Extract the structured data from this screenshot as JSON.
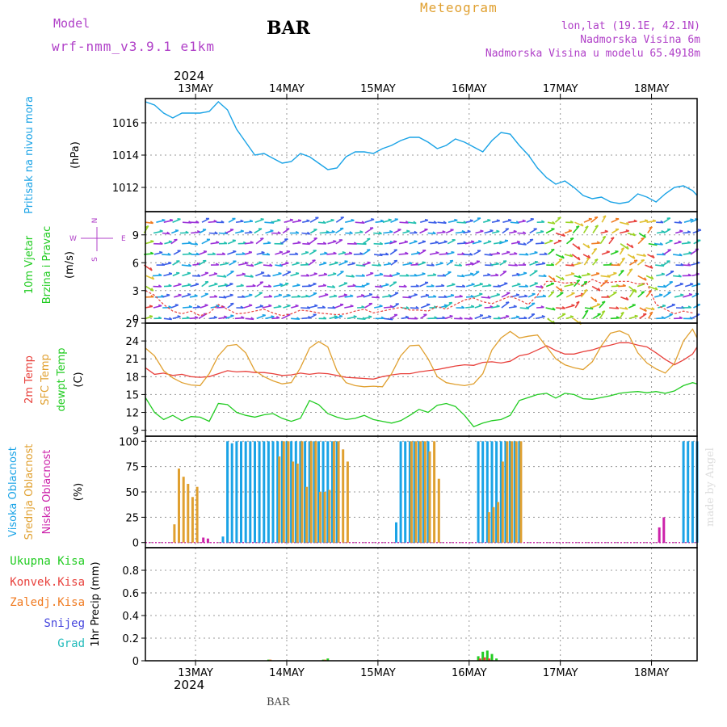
{
  "header": {
    "model_label": "Model",
    "model_name": "wrf-nmm_v3.9.1 e1km",
    "station": "BAR",
    "title": "Meteogram",
    "coords": "lon,lat (19.1E, 42.1N)",
    "altitude": "Nadmorska Visina 6m",
    "model_altitude": "Nadmorska Visina u modelu 65.4918m",
    "year": "2024",
    "footer_station": "BAR",
    "watermark": "made by Angel"
  },
  "colors": {
    "pressure": "#1aa3e6",
    "temp2m": "#e8413c",
    "sfc_temp": "#e0a030",
    "dewpoint": "#22cc22",
    "high_cloud": "#1aa3e6",
    "mid_cloud": "#e0a030",
    "low_cloud": "#cc22aa",
    "precip_total": "#22cc22",
    "precip_conv": "#e8413c",
    "precip_frz": "#f07a20",
    "snow": "#4444dd",
    "hail": "#22bbbb"
  },
  "chart_data": [
    {
      "type": "line",
      "panel": "pressure",
      "ylabel": [
        "Pritisak na nivou mora",
        "(hPa)"
      ],
      "xlim": [
        -0.55,
        5.5
      ],
      "ylim": [
        1010.5,
        1017.5
      ],
      "yticks": [
        1012,
        1014,
        1016
      ],
      "x_ticks": [
        "13MAY",
        "14MAY",
        "15MAY",
        "16MAY",
        "17MAY",
        "18MAY"
      ],
      "series": [
        {
          "x": [
            -0.55,
            -0.45,
            -0.35,
            -0.25,
            -0.15,
            -0.05,
            0.05,
            0.15,
            0.25,
            0.35,
            0.45,
            0.55,
            0.65,
            0.75,
            0.85,
            0.95,
            1.05,
            1.15,
            1.25,
            1.35,
            1.45,
            1.55,
            1.65,
            1.75,
            1.85,
            1.95,
            2.05,
            2.15,
            2.25,
            2.35,
            2.45,
            2.55,
            2.65,
            2.75,
            2.85,
            2.95,
            3.05,
            3.15,
            3.25,
            3.35,
            3.45,
            3.55,
            3.65,
            3.75,
            3.85,
            3.95,
            4.05,
            4.15,
            4.25,
            4.35,
            4.45,
            4.55,
            4.65,
            4.75,
            4.85,
            4.95,
            5.05,
            5.15,
            5.25,
            5.35,
            5.45,
            5.5
          ],
          "values": [
            1017.3,
            1017.1,
            1016.6,
            1016.3,
            1016.6,
            1016.6,
            1016.6,
            1016.7,
            1017.3,
            1016.8,
            1015.6,
            1014.8,
            1014.0,
            1014.1,
            1013.8,
            1013.5,
            1013.6,
            1014.1,
            1013.9,
            1013.5,
            1013.1,
            1013.2,
            1013.9,
            1014.2,
            1014.2,
            1014.1,
            1014.4,
            1014.6,
            1014.9,
            1015.1,
            1015.1,
            1014.8,
            1014.4,
            1014.6,
            1015.0,
            1014.8,
            1014.5,
            1014.2,
            1014.9,
            1015.4,
            1015.3,
            1014.6,
            1014.0,
            1013.2,
            1012.6,
            1012.2,
            1012.4,
            1012.0,
            1011.5,
            1011.3,
            1011.4,
            1011.1,
            1011.0,
            1011.1,
            1011.6,
            1011.4,
            1011.1,
            1011.6,
            1012.0,
            1012.1,
            1011.8,
            1011.5
          ]
        }
      ]
    },
    {
      "type": "barb",
      "panel": "wind",
      "ylabel": [
        "10m Vjetar",
        "Brzina i Pravac",
        "(m/s)"
      ],
      "compass": [
        "N",
        "W",
        "E",
        "S"
      ],
      "ylim": [
        -0.5,
        11.5
      ],
      "yticks": [
        0,
        3,
        6,
        9
      ],
      "series": [
        {
          "name": "wind speed",
          "x": [
            -0.55,
            -0.45,
            -0.35,
            -0.25,
            -0.15,
            -0.05,
            0.05,
            0.15,
            0.25,
            0.35,
            0.45,
            0.55,
            0.65,
            0.75,
            0.85,
            0.95,
            1.05,
            1.15,
            1.25,
            1.35,
            1.45,
            1.55,
            1.65,
            1.75,
            1.85,
            1.95,
            2.05,
            2.15,
            2.25,
            2.35,
            2.45,
            2.55,
            2.65,
            2.75,
            2.85,
            2.95,
            3.05,
            3.15,
            3.25,
            3.35,
            3.45,
            3.55,
            3.65,
            3.75,
            3.85,
            3.95,
            4.05,
            4.15,
            4.25,
            4.35,
            4.45,
            4.55,
            4.65,
            4.75,
            4.85,
            4.95,
            5.05,
            5.15,
            5.25,
            5.35,
            5.45
          ],
          "values": [
            3.0,
            2.5,
            1.5,
            0.8,
            0.5,
            0.8,
            0.3,
            0.6,
            1.5,
            1.0,
            0.5,
            0.6,
            0.8,
            1.0,
            0.6,
            0.3,
            0.5,
            0.9,
            0.8,
            0.6,
            0.5,
            0.4,
            0.5,
            0.8,
            1.0,
            0.6,
            0.8,
            1.0,
            1.2,
            0.9,
            0.9,
            0.8,
            1.3,
            1.0,
            1.5,
            2.0,
            2.2,
            1.8,
            1.6,
            2.0,
            2.4,
            2.0,
            1.5,
            2.5,
            4.0,
            4.0,
            3.8,
            3.9,
            3.5,
            4.2,
            3.8,
            3.9,
            4.0,
            4.0,
            3.7,
            3.8,
            1.5,
            1.0,
            0.5,
            0.8,
            0.6
          ]
        }
      ]
    },
    {
      "type": "line",
      "panel": "temperature",
      "ylabel": [
        "2m Temp",
        "SFC Temp",
        "dewpt Temp",
        "(C)"
      ],
      "ylim": [
        8,
        27
      ],
      "yticks": [
        9,
        12,
        15,
        18,
        21,
        24,
        27
      ],
      "series": [
        {
          "name": "2m Temp",
          "x": [
            -0.55,
            -0.45,
            -0.35,
            -0.25,
            -0.15,
            -0.05,
            0.05,
            0.15,
            0.25,
            0.35,
            0.45,
            0.55,
            0.65,
            0.75,
            0.85,
            0.95,
            1.05,
            1.15,
            1.25,
            1.35,
            1.45,
            1.55,
            1.65,
            1.75,
            1.85,
            1.95,
            2.05,
            2.15,
            2.25,
            2.35,
            2.45,
            2.55,
            2.65,
            2.75,
            2.85,
            2.95,
            3.05,
            3.15,
            3.25,
            3.35,
            3.45,
            3.55,
            3.65,
            3.75,
            3.85,
            3.95,
            4.05,
            4.15,
            4.25,
            4.35,
            4.45,
            4.55,
            4.65,
            4.75,
            4.85,
            4.95,
            5.05,
            5.15,
            5.25,
            5.35,
            5.45,
            5.5
          ],
          "values": [
            19.5,
            18.4,
            18.6,
            18.2,
            18.4,
            18.0,
            17.9,
            18.0,
            18.5,
            19.0,
            18.8,
            18.9,
            18.7,
            18.7,
            18.5,
            18.2,
            18.3,
            18.6,
            18.4,
            18.6,
            18.5,
            18.2,
            17.9,
            17.8,
            17.7,
            17.6,
            18.0,
            18.3,
            18.5,
            18.5,
            18.8,
            19.0,
            19.2,
            19.5,
            19.8,
            20.0,
            19.9,
            20.4,
            20.5,
            20.3,
            20.6,
            21.5,
            21.8,
            22.5,
            23.2,
            22.4,
            21.8,
            21.8,
            22.2,
            22.5,
            23.0,
            23.3,
            23.7,
            23.7,
            23.3,
            23.0,
            22.0,
            20.9,
            20.0,
            20.8,
            21.8,
            23.0
          ]
        },
        {
          "name": "SFC Temp",
          "x": [
            -0.55,
            -0.45,
            -0.35,
            -0.25,
            -0.15,
            -0.05,
            0.05,
            0.15,
            0.25,
            0.35,
            0.45,
            0.55,
            0.65,
            0.75,
            0.85,
            0.95,
            1.05,
            1.15,
            1.25,
            1.35,
            1.45,
            1.55,
            1.65,
            1.75,
            1.85,
            1.95,
            2.05,
            2.15,
            2.25,
            2.35,
            2.45,
            2.55,
            2.65,
            2.75,
            2.85,
            2.95,
            3.05,
            3.15,
            3.25,
            3.35,
            3.45,
            3.55,
            3.65,
            3.75,
            3.85,
            3.95,
            4.05,
            4.15,
            4.25,
            4.35,
            4.45,
            4.55,
            4.65,
            4.75,
            4.85,
            4.95,
            5.05,
            5.15,
            5.25,
            5.35,
            5.45,
            5.5
          ],
          "values": [
            22.8,
            21.5,
            19.0,
            17.8,
            17.0,
            16.6,
            16.5,
            18.5,
            21.5,
            23.2,
            23.4,
            22.0,
            19.0,
            18.0,
            17.3,
            16.8,
            17.0,
            19.5,
            22.8,
            23.9,
            23.0,
            19.0,
            17.0,
            16.5,
            16.3,
            16.4,
            16.3,
            18.5,
            21.5,
            23.2,
            23.3,
            21.0,
            18.0,
            17.0,
            16.7,
            16.5,
            16.8,
            18.5,
            22.5,
            24.5,
            25.6,
            24.5,
            24.8,
            25.0,
            23.0,
            21.0,
            20.0,
            19.5,
            19.2,
            20.5,
            23.2,
            25.3,
            25.7,
            25.0,
            22.0,
            20.3,
            19.3,
            18.6,
            20.2,
            24.0,
            26.0,
            24.5
          ]
        },
        {
          "name": "dewpt Temp",
          "x": [
            -0.55,
            -0.45,
            -0.35,
            -0.25,
            -0.15,
            -0.05,
            0.05,
            0.15,
            0.25,
            0.35,
            0.45,
            0.55,
            0.65,
            0.75,
            0.85,
            0.95,
            1.05,
            1.15,
            1.25,
            1.35,
            1.45,
            1.55,
            1.65,
            1.75,
            1.85,
            1.95,
            2.05,
            2.15,
            2.25,
            2.35,
            2.45,
            2.55,
            2.65,
            2.75,
            2.85,
            2.95,
            3.05,
            3.15,
            3.25,
            3.35,
            3.45,
            3.55,
            3.65,
            3.75,
            3.85,
            3.95,
            4.05,
            4.15,
            4.25,
            4.35,
            4.45,
            4.55,
            4.65,
            4.75,
            4.85,
            4.95,
            5.05,
            5.15,
            5.25,
            5.35,
            5.45,
            5.5
          ],
          "values": [
            14.5,
            12.0,
            10.8,
            11.5,
            10.6,
            11.3,
            11.2,
            10.5,
            13.5,
            13.3,
            12.0,
            11.5,
            11.2,
            11.6,
            11.8,
            11.0,
            10.5,
            11.0,
            14.0,
            13.3,
            11.8,
            11.2,
            10.8,
            11.0,
            11.5,
            10.8,
            10.5,
            10.2,
            10.6,
            11.5,
            12.5,
            12.0,
            13.2,
            13.5,
            13.0,
            11.5,
            9.6,
            10.2,
            10.6,
            10.8,
            11.5,
            14.0,
            14.5,
            15.0,
            15.2,
            14.4,
            15.2,
            15.0,
            14.3,
            14.2,
            14.5,
            14.8,
            15.2,
            15.4,
            15.5,
            15.3,
            15.5,
            15.2,
            15.6,
            16.5,
            17.0,
            16.8
          ]
        }
      ]
    },
    {
      "type": "bar",
      "panel": "clouds",
      "ylabel": [
        "Visoka Oblacnost",
        "Srednja Oblacnost",
        "Niska Oblacnost",
        "(%)"
      ],
      "ylim": [
        -5,
        105
      ],
      "yticks": [
        0,
        25,
        50,
        75,
        100
      ],
      "series": [
        {
          "name": "Visoka Oblacnost",
          "x": [
            0.3,
            0.35,
            0.4,
            0.45,
            0.5,
            0.55,
            0.6,
            0.65,
            0.7,
            0.75,
            0.8,
            0.85,
            0.9,
            0.95,
            1.0,
            1.05,
            1.1,
            1.15,
            1.2,
            1.25,
            1.3,
            1.35,
            1.4,
            1.45,
            1.5,
            1.55,
            2.2,
            2.25,
            2.3,
            2.35,
            2.4,
            2.45,
            2.5,
            2.55,
            3.1,
            3.15,
            3.2,
            3.25,
            3.3,
            3.35,
            3.4,
            3.45,
            3.5,
            3.55,
            5.35,
            5.4,
            5.45,
            5.5
          ],
          "values": [
            6,
            100,
            98,
            100,
            100,
            100,
            100,
            100,
            100,
            100,
            100,
            100,
            100,
            100,
            100,
            100,
            100,
            100,
            100,
            100,
            100,
            100,
            100,
            100,
            100,
            100,
            20,
            100,
            100,
            100,
            100,
            100,
            100,
            100,
            100,
            100,
            100,
            100,
            100,
            100,
            100,
            100,
            100,
            100,
            100,
            100,
            100,
            100
          ]
        },
        {
          "name": "Srednja Oblacnost",
          "x": [
            -0.25,
            -0.2,
            -0.15,
            -0.1,
            -0.05,
            0.0,
            0.05,
            0.9,
            0.95,
            1.0,
            1.05,
            1.1,
            1.15,
            1.2,
            1.25,
            1.3,
            1.35,
            1.4,
            1.45,
            1.5,
            1.55,
            1.6,
            1.65,
            2.35,
            2.4,
            2.45,
            2.5,
            2.55,
            2.6,
            2.65,
            3.2,
            3.25,
            3.3,
            3.35,
            3.4,
            3.45,
            3.5,
            3.55
          ],
          "values": [
            18,
            73,
            65,
            58,
            45,
            55,
            0,
            85,
            100,
            100,
            80,
            78,
            100,
            55,
            100,
            100,
            50,
            50,
            52,
            100,
            100,
            92,
            80,
            100,
            100,
            100,
            100,
            90,
            100,
            63,
            30,
            35,
            40,
            80,
            100,
            100,
            100,
            100
          ]
        },
        {
          "name": "Niska Oblacnost",
          "x": [
            0.05,
            0.1,
            5.05,
            5.1
          ],
          "values": [
            5,
            4,
            15,
            25
          ]
        }
      ]
    },
    {
      "type": "bar",
      "panel": "precipitation",
      "ylabel": [
        "1hr Precip (mm)"
      ],
      "legend": [
        "Ukupna Kisa",
        "Konvek.Kisa",
        "Zaledj.Kisa",
        "Snijeg",
        "Grad"
      ],
      "ylim": [
        0,
        1.0
      ],
      "yticks": [
        0,
        0.2,
        0.4,
        0.6,
        0.8
      ],
      "series": [
        {
          "name": "Ukupna Kisa",
          "x": [
            0.8,
            1.4,
            1.45,
            3.1,
            3.15,
            3.2,
            3.25,
            3.3
          ],
          "values": [
            0.01,
            0.01,
            0.02,
            0.04,
            0.08,
            0.09,
            0.06,
            0.02
          ]
        },
        {
          "name": "Konvek.Kisa",
          "x": [
            3.12,
            3.17,
            3.22
          ],
          "values": [
            0.02,
            0.03,
            0.02
          ]
        },
        {
          "name": "Zaledj.Kisa",
          "x": [
            0.82,
            1.42
          ],
          "values": [
            0.01,
            0.01
          ]
        }
      ]
    }
  ]
}
